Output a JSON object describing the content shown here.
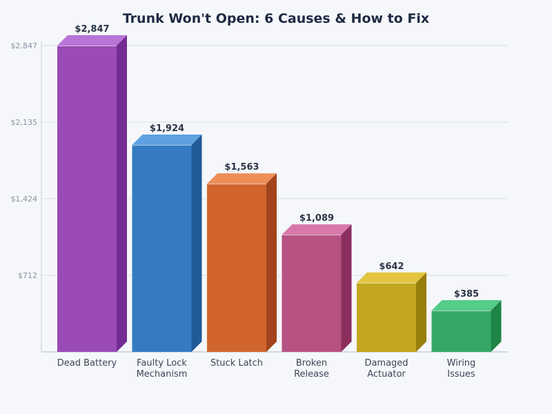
{
  "chart_data": {
    "type": "bar",
    "title": "Trunk Won't Open: 6 Causes & How to Fix",
    "xlabel": "",
    "ylabel": "",
    "ylim": [
      0,
      2847
    ],
    "yticks": [
      "$712",
      "$1,424",
      "$2,135",
      "$2,847"
    ],
    "ytick_values": [
      712,
      1424,
      2135,
      2847
    ],
    "grid": true,
    "style": "3d-bar",
    "categories": [
      [
        "Dead Battery"
      ],
      [
        "Faulty Lock",
        "Mechanism"
      ],
      [
        "Stuck Latch"
      ],
      [
        "Broken",
        "Release"
      ],
      [
        "Damaged",
        "Actuator"
      ],
      [
        "Wiring",
        "Issues"
      ]
    ],
    "values": [
      2847,
      1924,
      1563,
      1089,
      642,
      385
    ],
    "value_labels": [
      "$2,847",
      "$1,924",
      "$1,563",
      "$1,089",
      "$642",
      "$385"
    ],
    "colors": [
      {
        "front": "#9b4bb6",
        "top": "#b874d6",
        "side": "#742d92"
      },
      {
        "front": "#347bc2",
        "top": "#5ea2e2",
        "side": "#205a96"
      },
      {
        "front": "#d2652e",
        "top": "#ee8e58",
        "side": "#a1441c"
      },
      {
        "front": "#b75283",
        "top": "#d778aa",
        "side": "#8b2f5e"
      },
      {
        "front": "#c4a51f",
        "top": "#e3c540",
        "side": "#987e0d"
      },
      {
        "front": "#35a867",
        "top": "#55cc88",
        "side": "#1f8447"
      }
    ]
  }
}
